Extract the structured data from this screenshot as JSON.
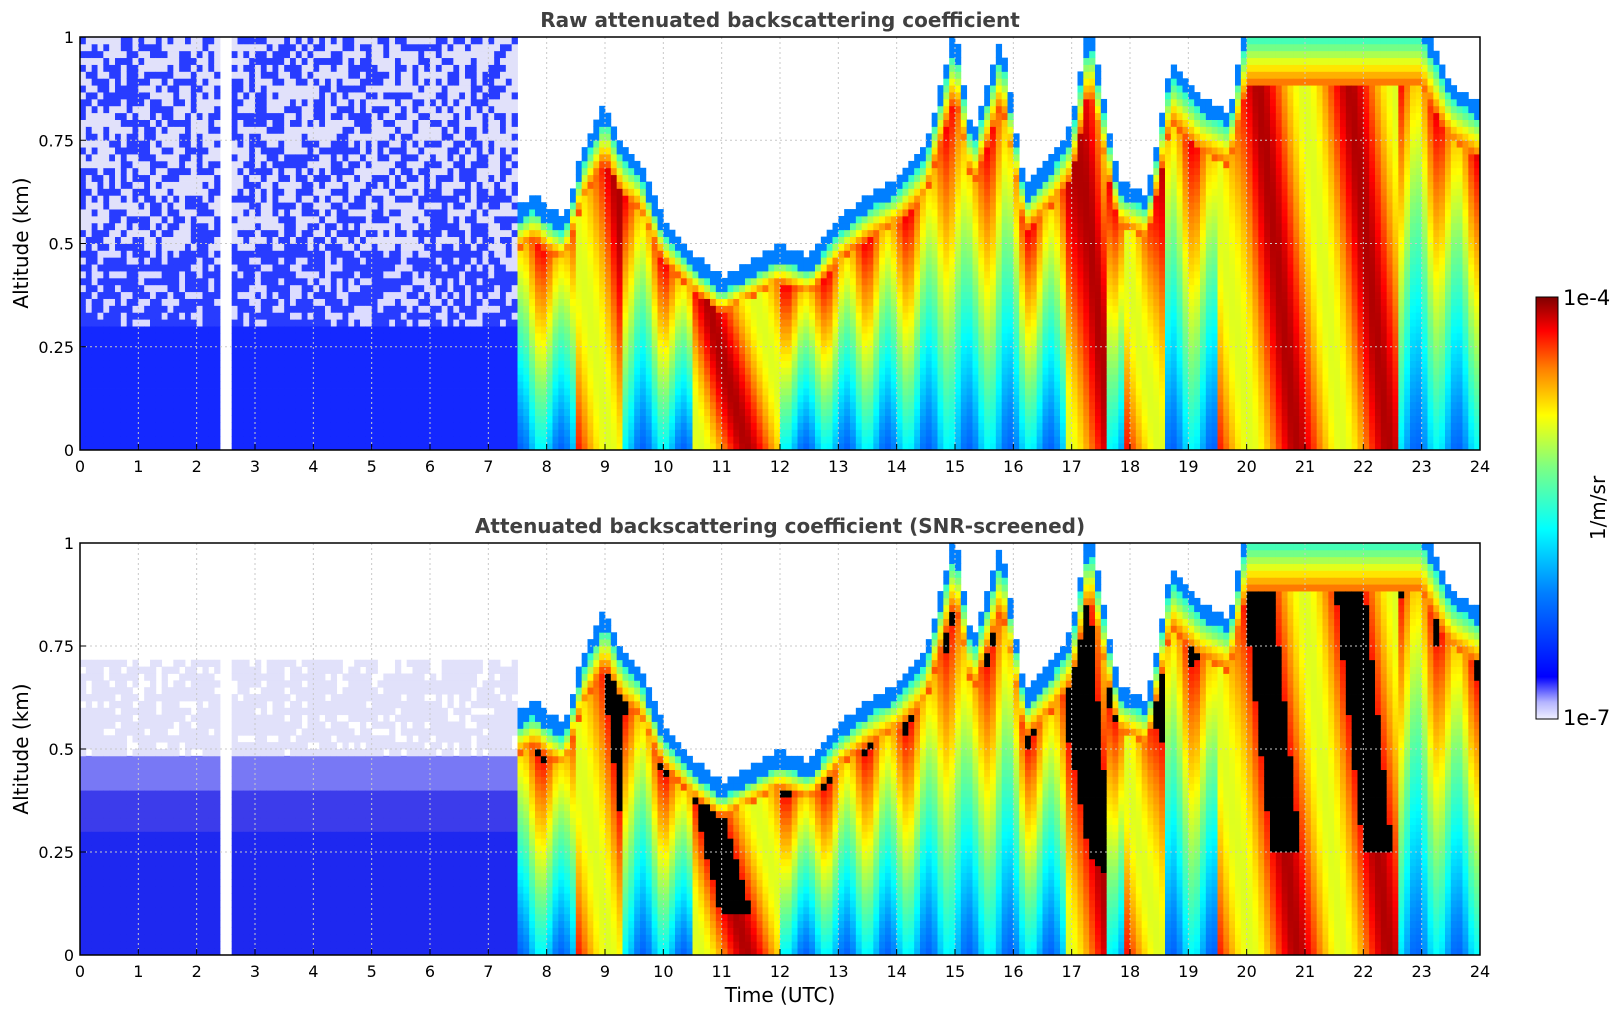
{
  "figure": {
    "xlabel": "Time (UTC)",
    "colorbar": {
      "label": "1/m/sr",
      "max_label": "1e-4",
      "min_label": "1e-7",
      "scale": "log",
      "colormap": "jet"
    }
  },
  "chart_data": [
    {
      "type": "heatmap",
      "title": "Raw attenuated backscattering coefficient",
      "xlabel": "",
      "ylabel": "Altitude (km)",
      "xlim": [
        0,
        24
      ],
      "ylim": [
        0,
        1
      ],
      "xticks": [
        "0",
        "1",
        "2",
        "3",
        "4",
        "5",
        "6",
        "7",
        "8",
        "9",
        "10",
        "11",
        "12",
        "13",
        "14",
        "15",
        "16",
        "17",
        "18",
        "19",
        "20",
        "21",
        "22",
        "23",
        "24"
      ],
      "yticks": [
        "0",
        "0.25",
        "0.5",
        "0.75",
        "1"
      ],
      "grid": true,
      "screened": false,
      "boundary_layer_top_km": {
        "time": [
          7.5,
          7.8,
          8.0,
          8.3,
          8.6,
          9.0,
          9.3,
          9.6,
          10.0,
          10.5,
          11.0,
          11.5,
          12.0,
          12.5,
          13.0,
          13.5,
          14.0,
          14.5,
          15.0,
          15.3,
          15.8,
          16.2,
          16.7,
          17.0,
          17.3,
          17.8,
          18.3,
          18.7,
          19.2,
          19.7,
          20.0,
          20.5,
          21.0,
          21.5,
          22.0,
          22.5,
          23.0,
          23.5,
          24.0
        ],
        "value": [
          0.55,
          0.58,
          0.55,
          0.52,
          0.68,
          0.8,
          0.7,
          0.66,
          0.52,
          0.44,
          0.38,
          0.42,
          0.46,
          0.43,
          0.52,
          0.58,
          0.62,
          0.7,
          0.98,
          0.72,
          0.96,
          0.6,
          0.68,
          0.75,
          1.0,
          0.62,
          0.58,
          0.9,
          0.82,
          0.78,
          1.0,
          1.0,
          1.0,
          1.0,
          1.0,
          1.0,
          1.0,
          0.85,
          0.8
        ]
      },
      "high_backscatter_periods_utc": [
        [
          8.5,
          9.3
        ],
        [
          10.5,
          12.0
        ],
        [
          16.9,
          17.6
        ],
        [
          17.9,
          18.6
        ],
        [
          19.5,
          22.6
        ]
      ],
      "missing_data_utc": [
        2.5
      ]
    },
    {
      "type": "heatmap",
      "title": "Attenuated backscattering coefficient (SNR-screened)",
      "xlabel": "Time (UTC)",
      "ylabel": "Altitude (km)",
      "xlim": [
        0,
        24
      ],
      "ylim": [
        0,
        1
      ],
      "xticks": [
        "0",
        "1",
        "2",
        "3",
        "4",
        "5",
        "6",
        "7",
        "8",
        "9",
        "10",
        "11",
        "12",
        "13",
        "14",
        "15",
        "16",
        "17",
        "18",
        "19",
        "20",
        "21",
        "22",
        "23",
        "24"
      ],
      "yticks": [
        "0",
        "0.25",
        "0.5",
        "0.75",
        "1"
      ],
      "grid": true,
      "screened": true,
      "screened_out_color": "#000000",
      "missing_data_utc": [
        2.5
      ]
    }
  ],
  "colors": {
    "frame": "#000000",
    "grid": "#c8c8c8",
    "title": "#404040",
    "background": "#ffffff"
  }
}
